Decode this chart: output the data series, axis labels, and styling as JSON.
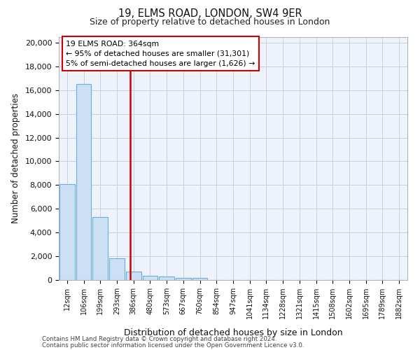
{
  "title1": "19, ELMS ROAD, LONDON, SW4 9ER",
  "title2": "Size of property relative to detached houses in London",
  "xlabel": "Distribution of detached houses by size in London",
  "ylabel": "Number of detached properties",
  "bar_labels": [
    "12sqm",
    "106sqm",
    "199sqm",
    "293sqm",
    "386sqm",
    "480sqm",
    "573sqm",
    "667sqm",
    "760sqm",
    "854sqm",
    "947sqm",
    "1041sqm",
    "1134sqm",
    "1228sqm",
    "1321sqm",
    "1415sqm",
    "1508sqm",
    "1602sqm",
    "1695sqm",
    "1789sqm",
    "1882sqm"
  ],
  "bar_values": [
    8100,
    16500,
    5300,
    1850,
    700,
    350,
    270,
    200,
    180,
    0,
    0,
    0,
    0,
    0,
    0,
    0,
    0,
    0,
    0,
    0,
    0
  ],
  "bar_color": "#cce0f5",
  "bar_edge_color": "#6aafd6",
  "vline_x_index": 3.82,
  "vline_color": "#cc0000",
  "annotation_line1": "19 ELMS ROAD: 364sqm",
  "annotation_line2": "← 95% of detached houses are smaller (31,301)",
  "annotation_line3": "5% of semi-detached houses are larger (1,626) →",
  "annotation_box_color": "#ffffff",
  "annotation_box_edge": "#cc0000",
  "ylim": [
    0,
    20500
  ],
  "yticks": [
    0,
    2000,
    4000,
    6000,
    8000,
    10000,
    12000,
    14000,
    16000,
    18000,
    20000
  ],
  "bg_color": "#edf2fb",
  "grid_color": "#c8cfe0",
  "footer1": "Contains HM Land Registry data © Crown copyright and database right 2024.",
  "footer2": "Contains public sector information licensed under the Open Government Licence v3.0."
}
